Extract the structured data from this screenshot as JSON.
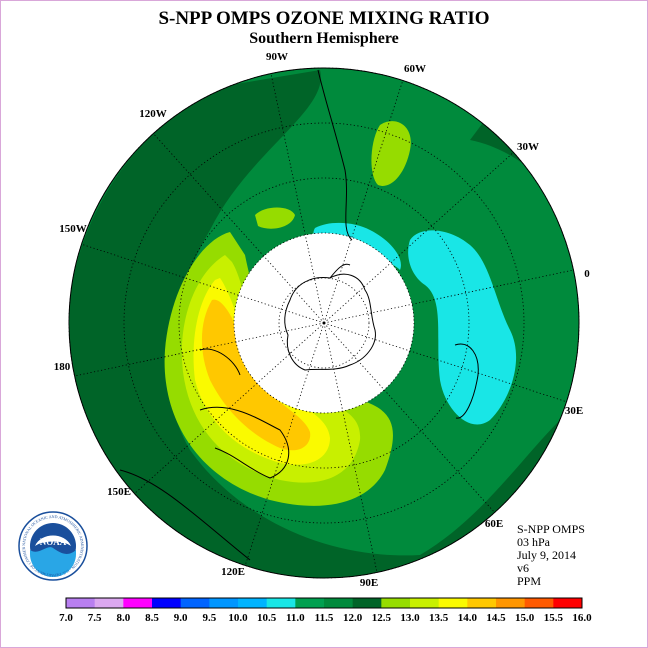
{
  "header": {
    "title": "S-NPP OMPS OZONE MIXING RATIO",
    "subtitle": "Southern Hemisphere"
  },
  "map": {
    "longitude_labels": [
      {
        "label": "90W"
      },
      {
        "label": "60W"
      },
      {
        "label": "30W"
      },
      {
        "label": "0"
      },
      {
        "label": "30E"
      },
      {
        "label": "60E"
      },
      {
        "label": "90E"
      },
      {
        "label": "120E"
      },
      {
        "label": "150E"
      },
      {
        "label": "180"
      },
      {
        "label": "150W"
      },
      {
        "label": "120W"
      }
    ],
    "no_data_color": "#ffffff"
  },
  "info_box": {
    "product": "S-NPP OMPS",
    "level": "03 hPa",
    "date": "July 9, 2014",
    "version": "v6",
    "units": "PPM"
  },
  "logo": {
    "text": "NOAA",
    "ring_text": "NATIONAL OCEANIC AND ATMOSPHERIC ADMINISTRATION · U.S. DEPARTMENT OF COMMERCE"
  },
  "colorbar": {
    "ticks": [
      "7.0",
      "7.5",
      "8.0",
      "8.5",
      "9.0",
      "9.5",
      "10.0",
      "10.5",
      "11.0",
      "11.5",
      "12.0",
      "12.5",
      "13.0",
      "13.5",
      "14.0",
      "14.5",
      "15.0",
      "15.5",
      "16.0"
    ],
    "colors": [
      "#b87ff0",
      "#dba8f0",
      "#ff00ff",
      "#0000ff",
      "#0064ff",
      "#0096ff",
      "#00b4ff",
      "#19e6e6",
      "#00a050",
      "#008a3c",
      "#006428",
      "#96dc00",
      "#c8f000",
      "#fafa00",
      "#ffc800",
      "#ff9600",
      "#ff5a00",
      "#ff0000",
      "#96643c"
    ]
  }
}
